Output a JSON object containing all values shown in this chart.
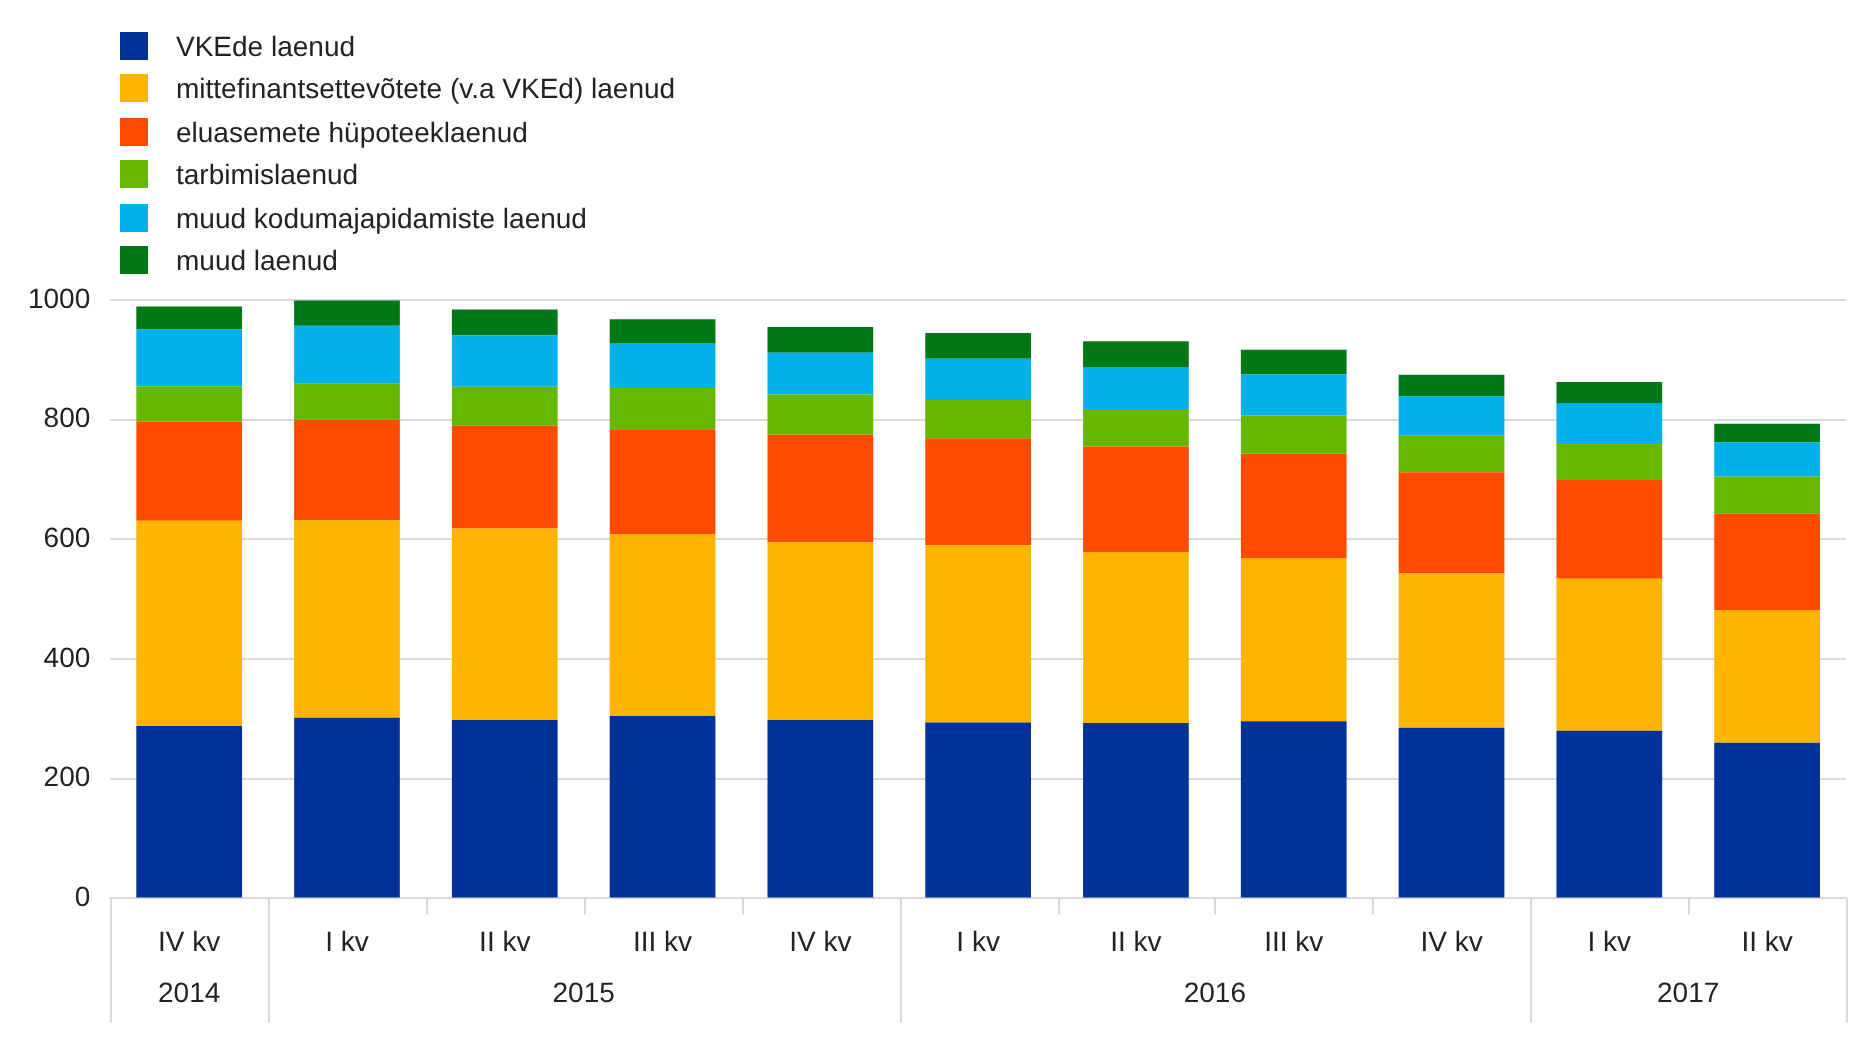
{
  "chart_data": {
    "type": "bar",
    "stacked": true,
    "legend": "top left",
    "grid": "y",
    "categories": [
      "IV kv",
      "I kv",
      "II kv",
      "III kv",
      "IV kv",
      "I kv",
      "II kv",
      "III kv",
      "IV kv",
      "I kv",
      "II kv"
    ],
    "annotations": [
      "2014",
      "2015",
      "2016",
      "2017"
    ],
    "ylim": [
      0,
      1000
    ],
    "yticks": [
      0,
      200,
      400,
      600,
      800,
      1000
    ],
    "series": [
      {
        "name": "VKEde laenud",
        "color": "#003299",
        "values": [
          288,
          302,
          298,
          305,
          298,
          294,
          293,
          296,
          285,
          280,
          260
        ]
      },
      {
        "name": "mittefinantsettevõtete (v.a VKEd) laenud",
        "color": "#ffb400",
        "values": [
          343,
          330,
          320,
          303,
          297,
          296,
          286,
          273,
          258,
          254,
          222
        ]
      },
      {
        "name": "eluasemete hüpoteeklaenud",
        "color": "#ff4b00",
        "values": [
          166,
          168,
          172,
          176,
          180,
          179,
          176,
          174,
          169,
          165,
          161
        ]
      },
      {
        "name": "tarbimislaenud",
        "color": "#65b800",
        "values": [
          59,
          60,
          65,
          69,
          67,
          64,
          63,
          64,
          62,
          62,
          62
        ]
      },
      {
        "name": "muud kodumajapidamiste laenud",
        "color": "#00b1ea",
        "values": [
          95,
          97,
          86,
          75,
          70,
          69,
          70,
          69,
          65,
          67,
          57
        ]
      },
      {
        "name": "muud laenud",
        "color": "#007816",
        "values": [
          38,
          42,
          43,
          40,
          43,
          43,
          43,
          41,
          36,
          35,
          31
        ]
      }
    ]
  }
}
